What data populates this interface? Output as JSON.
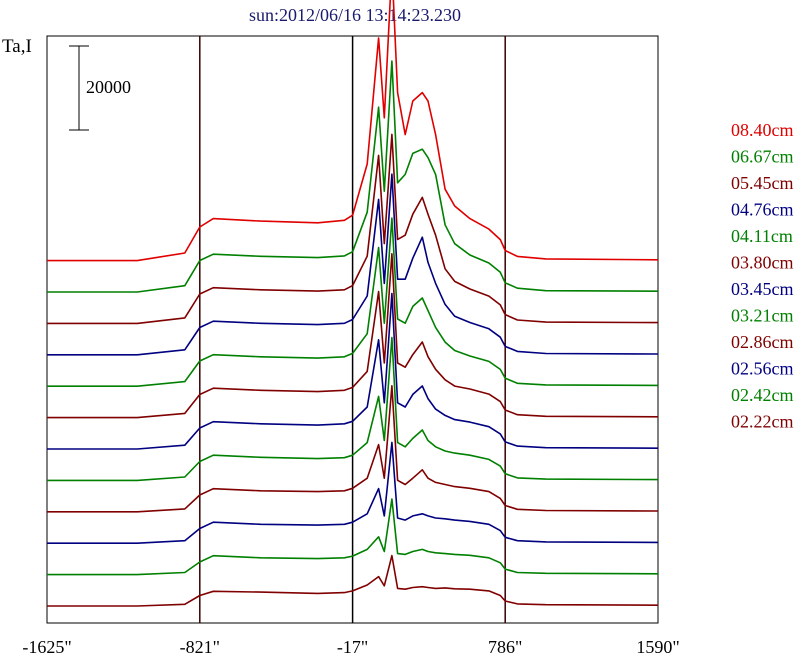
{
  "chart_data": {
    "type": "line",
    "title": "sun:2012/06/16 13:14:23.230",
    "ylabel": "Ta,I",
    "xlabel": "",
    "scale_bar_label": "20000",
    "x_tick_labels": [
      "-1625\"",
      "-821\"",
      "-17\"",
      "786\"",
      "1590\""
    ],
    "x_ticks": [
      -1625,
      -821,
      -17,
      786,
      1590
    ],
    "xlim": [
      -1625,
      1590
    ],
    "vertical_lines_x": [
      -821,
      -17,
      786
    ],
    "series_order_bottom_to_top": true,
    "profile_x": [
      -1625,
      -1150,
      -900,
      -821,
      -750,
      -500,
      -200,
      -60,
      -17,
      60,
      120,
      150,
      190,
      220,
      260,
      300,
      350,
      380,
      420,
      470,
      520,
      600,
      700,
      760,
      786,
      850,
      1000,
      1590
    ],
    "series": [
      {
        "name": "02.22cm",
        "color": "#800000",
        "values": [
          0,
          0,
          400,
          2500,
          3500,
          3300,
          3000,
          3200,
          3600,
          5000,
          7000,
          4800,
          12000,
          4200,
          4000,
          4400,
          4600,
          4400,
          4200,
          4300,
          4100,
          4000,
          3600,
          2500,
          1200,
          500,
          300,
          200
        ]
      },
      {
        "name": "02.42cm",
        "color": "#008000",
        "values": [
          0,
          0,
          500,
          3000,
          4500,
          4000,
          3800,
          4000,
          4400,
          6000,
          9000,
          5500,
          18000,
          5000,
          4800,
          5500,
          6000,
          5500,
          5200,
          5000,
          4800,
          4600,
          4000,
          2800,
          1300,
          500,
          300,
          200
        ]
      },
      {
        "name": "02.56cm",
        "color": "#000080",
        "values": [
          0,
          0,
          600,
          3500,
          5000,
          4500,
          4300,
          4500,
          5000,
          7000,
          13000,
          6500,
          24000,
          6000,
          5500,
          6500,
          7000,
          6500,
          6000,
          5800,
          5500,
          5200,
          4500,
          3000,
          1400,
          600,
          300,
          200
        ]
      },
      {
        "name": "02.86cm",
        "color": "#800000",
        "values": [
          0,
          0,
          700,
          4000,
          5500,
          5000,
          4800,
          5000,
          5600,
          8000,
          16000,
          8000,
          30000,
          7500,
          6500,
          8000,
          10000,
          8000,
          7000,
          6500,
          6000,
          5600,
          4800,
          3200,
          1500,
          600,
          300,
          200
        ]
      },
      {
        "name": "03.21cm",
        "color": "#008000",
        "values": [
          0,
          0,
          800,
          4500,
          6000,
          5500,
          5200,
          5400,
          6000,
          9000,
          20000,
          9500,
          34000,
          9000,
          8000,
          10000,
          12000,
          9500,
          8000,
          7000,
          6500,
          6000,
          5000,
          3400,
          1600,
          600,
          300,
          200
        ]
      },
      {
        "name": "03.45cm",
        "color": "#000080",
        "values": [
          0,
          0,
          900,
          5000,
          6500,
          6000,
          5700,
          6000,
          6600,
          10000,
          26000,
          11000,
          37000,
          11000,
          10000,
          13000,
          15000,
          12000,
          9500,
          8000,
          7000,
          6400,
          5300,
          3600,
          1700,
          700,
          300,
          200
        ]
      },
      {
        "name": "03.80cm",
        "color": "#800000",
        "values": [
          0,
          0,
          1000,
          5500,
          7000,
          6500,
          6200,
          6500,
          7200,
          11000,
          30000,
          13000,
          39000,
          13000,
          12000,
          15000,
          18000,
          14500,
          11500,
          9000,
          7500,
          6800,
          5600,
          3800,
          1800,
          700,
          300,
          200
        ]
      },
      {
        "name": "04.11cm",
        "color": "#008000",
        "values": [
          0,
          0,
          1100,
          6000,
          7500,
          7000,
          6700,
          7000,
          7800,
          12500,
          33000,
          15000,
          40000,
          16000,
          15000,
          19000,
          21000,
          18000,
          14000,
          10500,
          8500,
          7200,
          5900,
          4000,
          1900,
          700,
          300,
          200
        ]
      },
      {
        "name": "04.76cm",
        "color": "#000080",
        "values": [
          0,
          0,
          1200,
          6500,
          8000,
          7500,
          7200,
          7500,
          8400,
          14000,
          37000,
          17000,
          43000,
          18000,
          18000,
          23000,
          28000,
          22000,
          17000,
          12000,
          9200,
          7700,
          6200,
          4200,
          2000,
          800,
          300,
          200
        ]
      },
      {
        "name": "05.45cm",
        "color": "#800000",
        "values": [
          0,
          0,
          1300,
          7000,
          8500,
          8000,
          7700,
          8000,
          9000,
          16000,
          40000,
          19000,
          45000,
          20000,
          21000,
          26000,
          30000,
          26000,
          21000,
          13000,
          10000,
          8200,
          6500,
          4400,
          2100,
          800,
          300,
          200
        ]
      },
      {
        "name": "06.67cm",
        "color": "#008000",
        "values": [
          0,
          0,
          1500,
          7500,
          9000,
          8500,
          8200,
          8600,
          9600,
          19000,
          44000,
          24000,
          55000,
          26000,
          28000,
          33000,
          34000,
          32000,
          28000,
          16000,
          11500,
          8800,
          6900,
          4700,
          2200,
          900,
          300,
          200
        ]
      },
      {
        "name": "08.40cm",
        "color": "#e00000",
        "values": [
          0,
          0,
          1800,
          8000,
          10000,
          9400,
          9000,
          9600,
          10800,
          23000,
          53000,
          34000,
          70000,
          40000,
          30000,
          38000,
          40000,
          38000,
          30000,
          17000,
          13000,
          10000,
          7500,
          5000,
          2400,
          1000,
          400,
          200
        ]
      }
    ]
  }
}
